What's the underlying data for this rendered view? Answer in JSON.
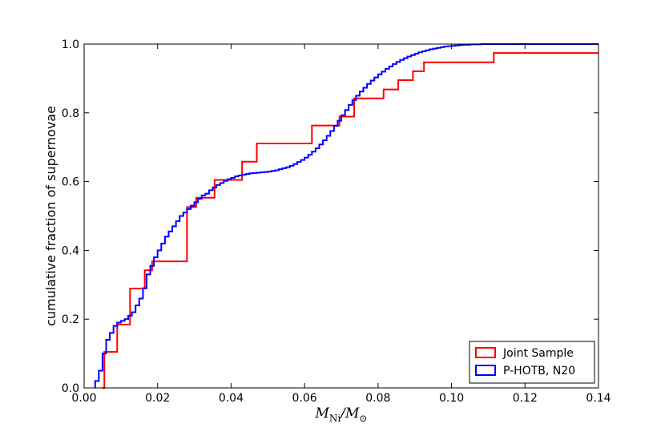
{
  "chart_data": {
    "type": "line",
    "step": true,
    "xlabel_parts": {
      "main": "M",
      "sub_ni": "Ni",
      "slash": "/",
      "main2": "M",
      "sub_sun": "⊙"
    },
    "ylabel": "cumulative fraction of supernovae",
    "xlim": [
      0.0,
      0.14
    ],
    "ylim": [
      0.0,
      1.0
    ],
    "xticks": [
      "0.00",
      "0.02",
      "0.04",
      "0.06",
      "0.08",
      "0.10",
      "0.12",
      "0.14"
    ],
    "yticks": [
      "0.0",
      "0.2",
      "0.4",
      "0.6",
      "0.8",
      "1.0"
    ],
    "legend_position": "lower-right",
    "series": [
      {
        "name": "Joint Sample",
        "color": "#ff0000",
        "x": [
          0.005,
          0.0055,
          0.009,
          0.0125,
          0.0165,
          0.0185,
          0.028,
          0.0305,
          0.0335,
          0.0355,
          0.043,
          0.047,
          0.062,
          0.0695,
          0.0735,
          0.0815,
          0.0855,
          0.0895,
          0.0925,
          0.1115,
          0.14
        ],
        "y": [
          0.0,
          0.105,
          0.184,
          0.289,
          0.342,
          0.368,
          0.526,
          0.553,
          0.553,
          0.605,
          0.658,
          0.711,
          0.763,
          0.789,
          0.842,
          0.868,
          0.895,
          0.921,
          0.947,
          0.974,
          0.974
        ]
      },
      {
        "name": "P-HOTB, N20",
        "color": "#0000ff",
        "x": [
          0.003,
          0.004,
          0.005,
          0.006,
          0.007,
          0.008,
          0.009,
          0.01,
          0.011,
          0.012,
          0.013,
          0.014,
          0.015,
          0.016,
          0.017,
          0.018,
          0.019,
          0.02,
          0.021,
          0.022,
          0.023,
          0.024,
          0.025,
          0.026,
          0.027,
          0.028,
          0.029,
          0.03,
          0.031,
          0.032,
          0.033,
          0.034,
          0.035,
          0.036,
          0.037,
          0.038,
          0.039,
          0.04,
          0.041,
          0.042,
          0.043,
          0.044,
          0.045,
          0.046,
          0.047,
          0.048,
          0.049,
          0.05,
          0.051,
          0.052,
          0.053,
          0.054,
          0.055,
          0.056,
          0.057,
          0.058,
          0.059,
          0.06,
          0.061,
          0.062,
          0.063,
          0.064,
          0.065,
          0.066,
          0.067,
          0.068,
          0.069,
          0.07,
          0.071,
          0.072,
          0.073,
          0.074,
          0.075,
          0.076,
          0.077,
          0.078,
          0.079,
          0.08,
          0.081,
          0.082,
          0.083,
          0.084,
          0.085,
          0.086,
          0.087,
          0.088,
          0.089,
          0.09,
          0.091,
          0.092,
          0.093,
          0.094,
          0.095,
          0.096,
          0.097,
          0.098,
          0.099,
          0.1,
          0.101,
          0.102,
          0.103,
          0.104,
          0.105,
          0.106,
          0.107,
          0.108,
          0.109,
          0.11,
          0.111,
          0.112,
          0.14
        ],
        "y": [
          0.02,
          0.05,
          0.1,
          0.14,
          0.16,
          0.18,
          0.19,
          0.195,
          0.2,
          0.21,
          0.22,
          0.24,
          0.26,
          0.29,
          0.33,
          0.355,
          0.38,
          0.4,
          0.42,
          0.44,
          0.455,
          0.47,
          0.485,
          0.5,
          0.51,
          0.52,
          0.53,
          0.54,
          0.55,
          0.56,
          0.565,
          0.575,
          0.583,
          0.59,
          0.596,
          0.602,
          0.607,
          0.611,
          0.615,
          0.618,
          0.62,
          0.622,
          0.624,
          0.625,
          0.626,
          0.627,
          0.628,
          0.629,
          0.631,
          0.633,
          0.636,
          0.639,
          0.642,
          0.646,
          0.651,
          0.657,
          0.663,
          0.67,
          0.678,
          0.687,
          0.697,
          0.708,
          0.72,
          0.733,
          0.747,
          0.762,
          0.777,
          0.793,
          0.808,
          0.823,
          0.837,
          0.85,
          0.862,
          0.873,
          0.884,
          0.894,
          0.903,
          0.912,
          0.92,
          0.928,
          0.935,
          0.942,
          0.948,
          0.954,
          0.959,
          0.964,
          0.968,
          0.972,
          0.976,
          0.979,
          0.982,
          0.985,
          0.987,
          0.989,
          0.991,
          0.993,
          0.994,
          0.995,
          0.996,
          0.997,
          0.998,
          0.998,
          0.999,
          0.999,
          0.999,
          1.0,
          1.0,
          1.0,
          1.0,
          1.0,
          1.0
        ]
      }
    ]
  }
}
